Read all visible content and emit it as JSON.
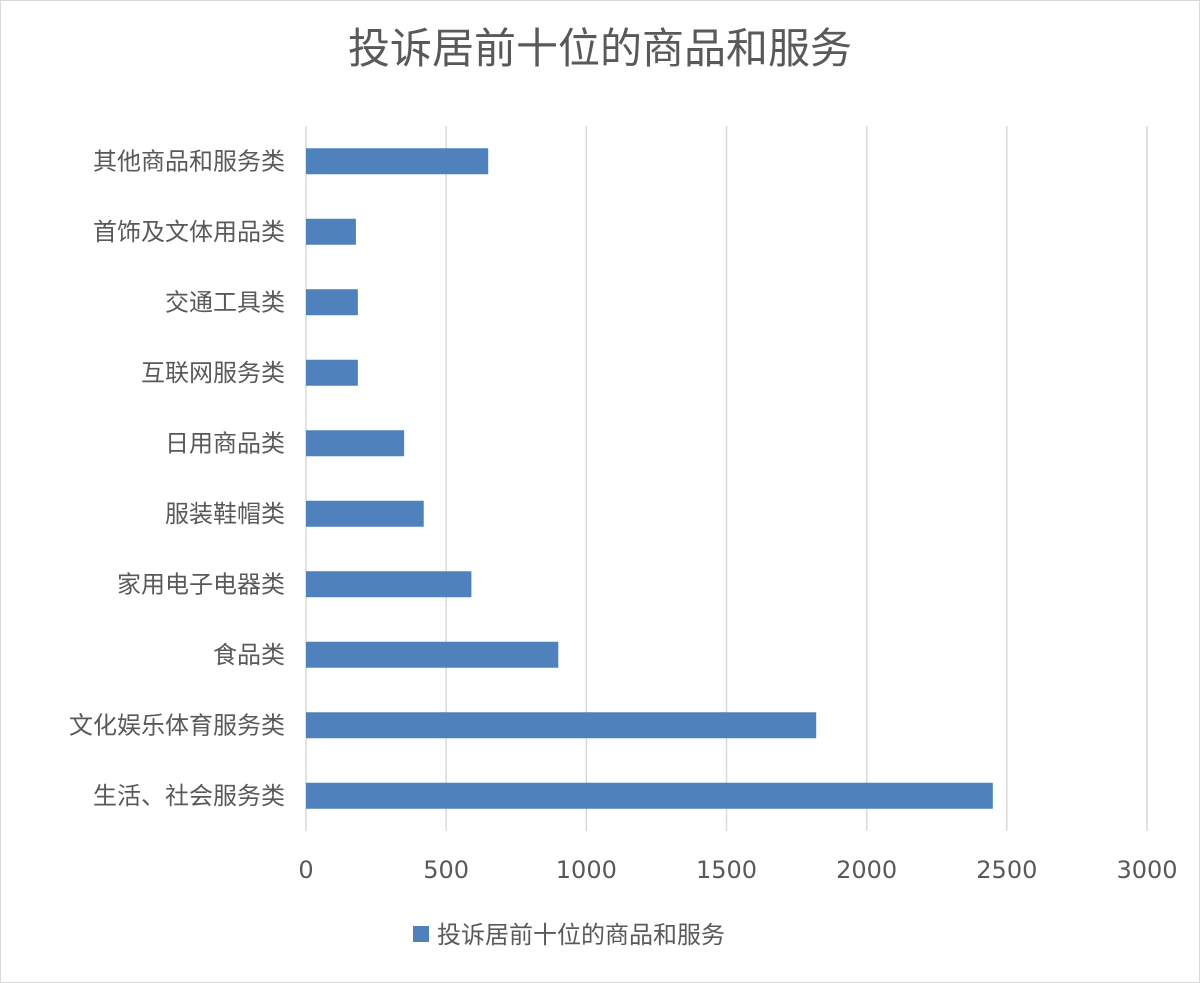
{
  "chart_data": {
    "type": "bar",
    "orientation": "horizontal",
    "title": "投诉居前十位的商品和服务",
    "categories": [
      "其他商品和服务类",
      "首饰及文体用品类",
      "交通工具类",
      "互联网服务类",
      "日用商品类",
      "服装鞋帽类",
      "家用电子电器类",
      "食品类",
      "文化娱乐体育服务类",
      "生活、社会服务类"
    ],
    "series": [
      {
        "name": "投诉居前十位的商品和服务",
        "values": [
          650,
          178,
          185,
          185,
          350,
          420,
          590,
          900,
          1820,
          2450
        ]
      }
    ],
    "xlim": [
      0,
      3000
    ],
    "xticks": [
      "0",
      "500",
      "1000",
      "1500",
      "2000",
      "2500",
      "3000"
    ],
    "grid": true,
    "legend_position": "bottom",
    "colors": {
      "bar": "#4f81bd",
      "grid": "#d9d9d9",
      "text": "#595959"
    }
  }
}
